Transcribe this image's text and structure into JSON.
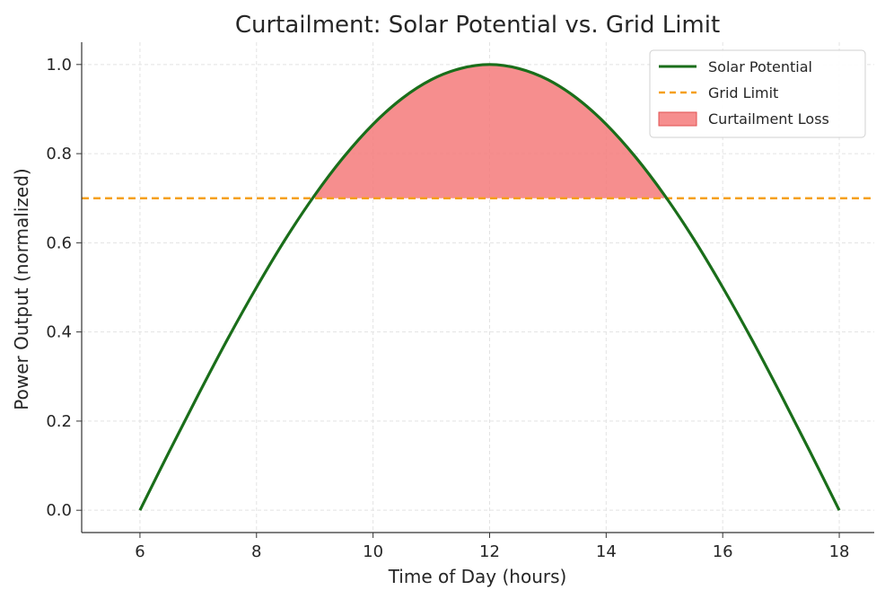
{
  "chart_data": {
    "type": "line",
    "title": "Curtailment: Solar Potential vs. Grid Limit",
    "xlabel": "Time of Day (hours)",
    "ylabel": "Power Output (normalized)",
    "xlim": [
      5.0,
      18.6
    ],
    "ylim": [
      -0.05,
      1.05
    ],
    "xticks": [
      6,
      8,
      10,
      12,
      14,
      16,
      18
    ],
    "yticks": [
      0.0,
      0.2,
      0.4,
      0.6,
      0.8,
      1.0
    ],
    "xtick_labels": [
      "6",
      "8",
      "10",
      "12",
      "14",
      "16",
      "18"
    ],
    "ytick_labels": [
      "0.0",
      "0.2",
      "0.4",
      "0.6",
      "0.8",
      "1.0"
    ],
    "grid": true,
    "legend_position": "top-right",
    "series": [
      {
        "name": "Solar Potential",
        "kind": "line",
        "color": "#1a6e1a",
        "x": [
          6,
          6.5,
          7,
          7.5,
          8,
          8.5,
          9,
          9.5,
          10,
          10.5,
          11,
          11.5,
          12,
          12.5,
          13,
          13.5,
          14,
          14.5,
          15,
          15.5,
          16,
          16.5,
          17,
          17.5,
          18
        ],
        "y": [
          0.0,
          0.131,
          0.259,
          0.383,
          0.5,
          0.609,
          0.707,
          0.793,
          0.866,
          0.924,
          0.966,
          0.991,
          1.0,
          0.991,
          0.966,
          0.924,
          0.866,
          0.793,
          0.707,
          0.609,
          0.5,
          0.383,
          0.259,
          0.131,
          0.0
        ]
      },
      {
        "name": "Grid Limit",
        "kind": "hline",
        "color": "#f5a01a",
        "y": 0.7
      },
      {
        "name": "Curtailment Loss",
        "kind": "fill_between",
        "color": "#f47a7a",
        "lower": 0.7,
        "x_range": [
          9,
          15
        ]
      }
    ]
  }
}
